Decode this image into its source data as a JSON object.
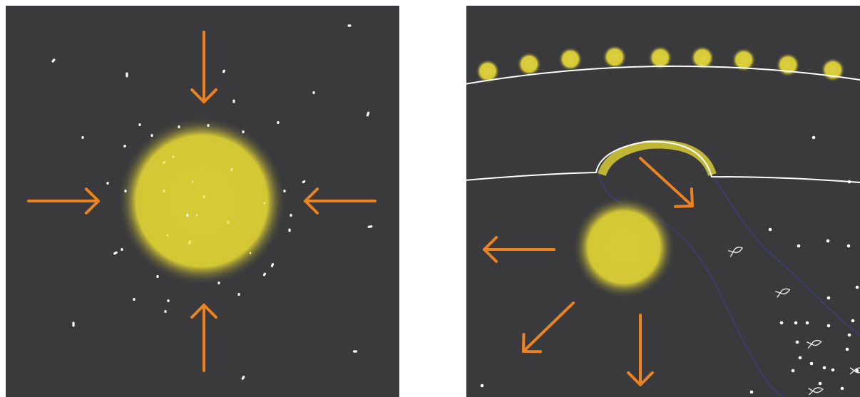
{
  "colors": {
    "background": "#3a3a3c",
    "glow": "#d8cc35",
    "glow_edge": "#9a9050",
    "arrow": "#ea8320",
    "particle": "#ffffff",
    "membrane": "#ffffff",
    "channel": "#3d3f7a"
  },
  "left_panel": {
    "arrow_direction": "inward",
    "arrow_count": 4
  },
  "right_panel": {
    "top_dot_count": 9,
    "arrow_direction": "outward",
    "arrow_count": 4,
    "fish_icon_count": 5
  }
}
